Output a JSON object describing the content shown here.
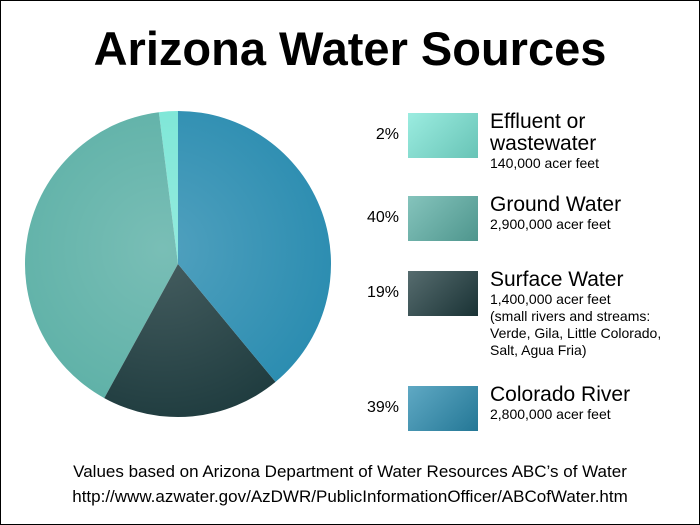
{
  "chart_data": {
    "type": "pie",
    "title": "Arizona Water Sources",
    "categories": [
      "Effluent or wastewater",
      "Ground Water",
      "Surface Water",
      "Colorado River"
    ],
    "values": [
      2,
      40,
      19,
      39
    ],
    "value_labels": [
      "2%",
      "40%",
      "19%",
      "39%"
    ],
    "amounts": [
      "140,000 acer feet",
      "2,900,000 acer feet",
      "1,400,000 acer feet",
      "2,800,000 acer feet"
    ],
    "colors": [
      "#7ae6d6",
      "#5cb0a6",
      "#1e3b3e",
      "#2a8cb0"
    ],
    "note_lines": [
      "(small rivers and streams:",
      "Verde, Gila, Little Colorado,",
      "Salt, Agua Fria)"
    ],
    "footnotes": [
      "Values based on Arizona Department of Water Resources ABC’s of Water",
      "http://www.azwater.gov/AzDWR/PublicInformationOfficer/ABCofWater.htm"
    ]
  }
}
